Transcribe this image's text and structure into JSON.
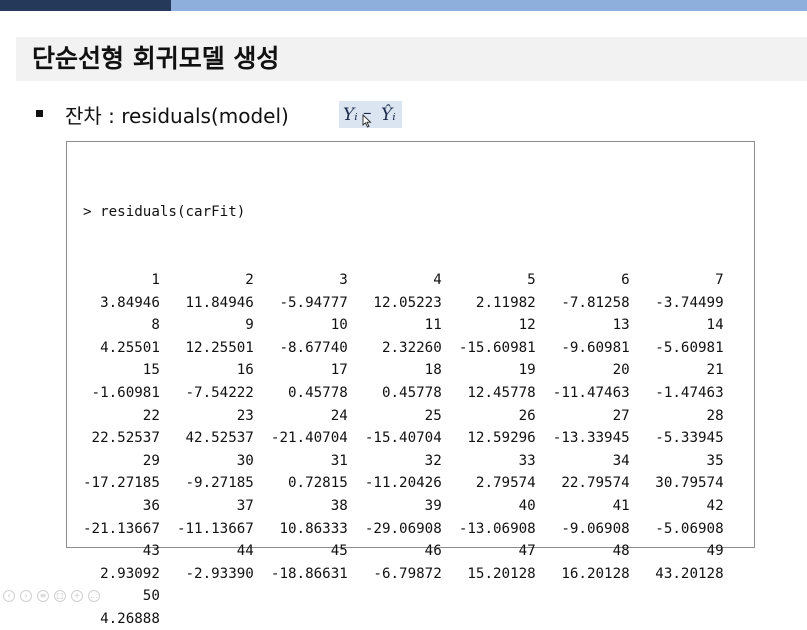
{
  "slide": {
    "title": "단순선형 회귀모델 생성",
    "bullet_text": "잔차 : residuals(model)",
    "formula": {
      "y_hat_term": "Yᵢ",
      "operator": "–",
      "y_term": "Ŷᵢ"
    }
  },
  "console": {
    "command": "> residuals(carFit)",
    "output_lines": [
      "        1          2          3          4          5          6          7",
      "  3.84946   11.84946   -5.94777   12.05223    2.11982   -7.81258   -3.74499",
      "        8          9         10         11         12         13         14",
      "  4.25501   12.25501   -8.67740    2.32260  -15.60981   -9.60981   -5.60981",
      "       15         16         17         18         19         20         21",
      " -1.60981   -7.54222    0.45778    0.45778   12.45778  -11.47463   -1.47463",
      "       22         23         24         25         26         27         28",
      " 22.52537   42.52537  -21.40704  -15.40704   12.59296  -13.33945   -5.33945",
      "       29         30         31         32         33         34         35",
      "-17.27185   -9.27185    0.72815  -11.20426    2.79574   22.79574   30.79574",
      "       36         37         38         39         40         41         42",
      "-21.13667  -11.13667   10.86333  -29.06908  -13.06908   -9.06908   -5.06908",
      "       43         44         45         46         47         48         49",
      "  2.93092   -2.93390  -18.86631   -6.79872   15.20128   16.20128   43.20128",
      "       50",
      "  4.26888"
    ]
  },
  "colors": {
    "top_dark": "#253a5a",
    "top_light": "#8eaedc",
    "title_band": "#f2f2f2",
    "formula_bg": "#dbe4f1"
  },
  "nav_icons": [
    "prev-icon",
    "next-icon",
    "menu-icon",
    "copy-icon",
    "zoom-icon",
    "more-icon"
  ]
}
